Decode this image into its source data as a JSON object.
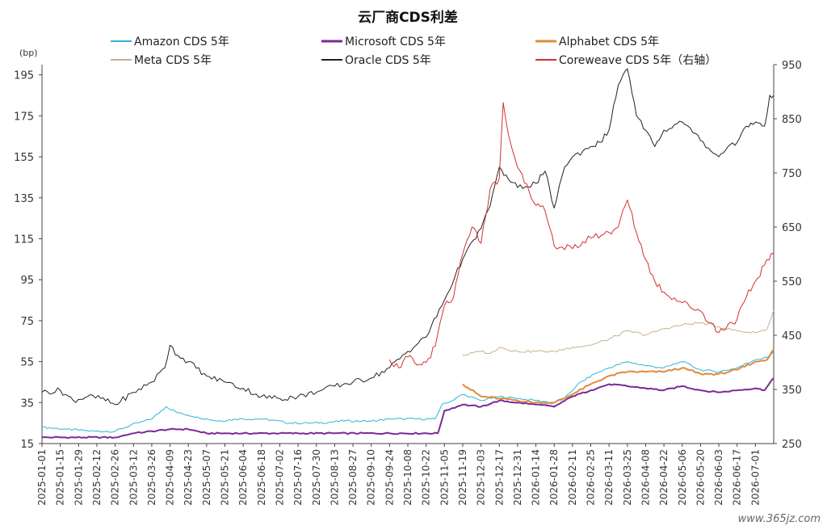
{
  "chart_data": {
    "type": "line",
    "title": "云厂商CDS利差",
    "ylabel_left": "(bp)",
    "ylim_left": [
      15,
      200
    ],
    "yticks_left": [
      15,
      35,
      55,
      75,
      95,
      115,
      135,
      155,
      175,
      195
    ],
    "ylim_right": [
      250,
      950
    ],
    "yticks_right": [
      250,
      350,
      450,
      550,
      650,
      750,
      850,
      950
    ],
    "grid": false,
    "legend_position": "top",
    "x_start": "2025-01-01",
    "x_end": "2026-07-15",
    "x_tick_labels": [
      "2025-01-01",
      "2025-01-15",
      "2025-01-29",
      "2025-02-12",
      "2025-02-26",
      "2025-03-12",
      "2025-03-26",
      "2025-04-09",
      "2025-04-23",
      "2025-05-07",
      "2025-05-21",
      "2025-06-04",
      "2025-06-18",
      "2025-07-02",
      "2025-07-16",
      "2025-07-30",
      "2025-08-13",
      "2025-08-27",
      "2025-09-10",
      "2025-09-24",
      "2025-10-08",
      "2025-10-22",
      "2025-11-05",
      "2025-11-19",
      "2025-12-03",
      "2025-12-17",
      "2025-12-31",
      "2026-01-14",
      "2026-01-28",
      "2026-02-11",
      "2026-02-25",
      "2026-03-11",
      "2026-03-25",
      "2026-04-08",
      "2026-04-22",
      "2026-05-06",
      "2026-05-20",
      "2026-06-03",
      "2026-06-17",
      "2026-07-01"
    ],
    "series": [
      {
        "name": "Amazon CDS 5年",
        "color": "#29b6d6",
        "axis": "left",
        "width": 1,
        "points": [
          [
            "2025-01-01",
            23
          ],
          [
            "2025-01-20",
            22
          ],
          [
            "2025-02-10",
            21
          ],
          [
            "2025-02-26",
            21
          ],
          [
            "2025-03-10",
            24
          ],
          [
            "2025-03-26",
            27
          ],
          [
            "2025-04-06",
            33
          ],
          [
            "2025-04-15",
            30
          ],
          [
            "2025-04-30",
            28
          ],
          [
            "2025-05-15",
            26
          ],
          [
            "2025-06-01",
            27
          ],
          [
            "2025-06-20",
            27
          ],
          [
            "2025-07-10",
            25
          ],
          [
            "2025-08-01",
            25
          ],
          [
            "2025-08-20",
            26
          ],
          [
            "2025-09-10",
            26
          ],
          [
            "2025-09-25",
            27
          ],
          [
            "2025-10-15",
            27
          ],
          [
            "2025-10-29",
            27
          ],
          [
            "2025-11-03",
            34
          ],
          [
            "2025-11-08",
            35
          ],
          [
            "2025-11-19",
            39
          ],
          [
            "2025-12-03",
            36
          ],
          [
            "2025-12-17",
            38
          ],
          [
            "2025-12-31",
            37
          ],
          [
            "2026-01-14",
            36
          ],
          [
            "2026-01-28",
            35
          ],
          [
            "2026-02-05",
            37
          ],
          [
            "2026-02-15",
            44
          ],
          [
            "2026-02-28",
            49
          ],
          [
            "2026-03-11",
            52
          ],
          [
            "2026-03-25",
            55
          ],
          [
            "2026-04-08",
            53
          ],
          [
            "2026-04-22",
            52
          ],
          [
            "2026-05-06",
            55
          ],
          [
            "2026-05-20",
            51
          ],
          [
            "2026-06-03",
            50
          ],
          [
            "2026-06-17",
            52
          ],
          [
            "2026-07-01",
            56
          ],
          [
            "2026-07-10",
            57
          ],
          [
            "2026-07-15",
            60
          ]
        ]
      },
      {
        "name": "Microsoft CDS 5年",
        "color": "#7a2a9a",
        "axis": "left",
        "width": 2,
        "points": [
          [
            "2025-01-01",
            18
          ],
          [
            "2025-02-26",
            18
          ],
          [
            "2025-03-12",
            20
          ],
          [
            "2025-03-26",
            21
          ],
          [
            "2025-04-09",
            22
          ],
          [
            "2025-04-23",
            22
          ],
          [
            "2025-05-07",
            20
          ],
          [
            "2025-06-04",
            20
          ],
          [
            "2025-07-02",
            20
          ],
          [
            "2025-08-13",
            20
          ],
          [
            "2025-09-24",
            20
          ],
          [
            "2025-10-22",
            20
          ],
          [
            "2025-10-31",
            20
          ],
          [
            "2025-11-05",
            31
          ],
          [
            "2025-11-19",
            34
          ],
          [
            "2025-12-03",
            33
          ],
          [
            "2025-12-17",
            36
          ],
          [
            "2025-12-31",
            35
          ],
          [
            "2026-01-14",
            34
          ],
          [
            "2026-01-28",
            33
          ],
          [
            "2026-02-11",
            38
          ],
          [
            "2026-02-25",
            41
          ],
          [
            "2026-03-11",
            44
          ],
          [
            "2026-03-25",
            43
          ],
          [
            "2026-04-08",
            42
          ],
          [
            "2026-04-22",
            41
          ],
          [
            "2026-05-06",
            43
          ],
          [
            "2026-05-20",
            41
          ],
          [
            "2026-06-03",
            40
          ],
          [
            "2026-06-17",
            41
          ],
          [
            "2026-07-01",
            42
          ],
          [
            "2026-07-08",
            41
          ],
          [
            "2026-07-15",
            47
          ]
        ]
      },
      {
        "name": "Alphabet CDS 5年",
        "color": "#e08a3c",
        "axis": "left",
        "width": 2,
        "points": [
          [
            "2025-11-19",
            44
          ],
          [
            "2025-12-03",
            38
          ],
          [
            "2025-12-17",
            37
          ],
          [
            "2025-12-31",
            36
          ],
          [
            "2026-01-14",
            35
          ],
          [
            "2026-01-28",
            35
          ],
          [
            "2026-02-11",
            39
          ],
          [
            "2026-02-25",
            44
          ],
          [
            "2026-03-11",
            48
          ],
          [
            "2026-03-25",
            50
          ],
          [
            "2026-04-08",
            50
          ],
          [
            "2026-04-22",
            50
          ],
          [
            "2026-05-06",
            52
          ],
          [
            "2026-05-20",
            49
          ],
          [
            "2026-06-03",
            49
          ],
          [
            "2026-06-17",
            51
          ],
          [
            "2026-07-01",
            55
          ],
          [
            "2026-07-10",
            56
          ],
          [
            "2026-07-15",
            61
          ]
        ]
      },
      {
        "name": "Meta CDS 5年",
        "color": "#c8b08a",
        "axis": "left",
        "width": 1,
        "points": [
          [
            "2025-11-19",
            58
          ],
          [
            "2025-12-03",
            60
          ],
          [
            "2025-12-10",
            59
          ],
          [
            "2025-12-17",
            62
          ],
          [
            "2025-12-31",
            60
          ],
          [
            "2026-01-14",
            60
          ],
          [
            "2026-01-28",
            60
          ],
          [
            "2026-02-11",
            62
          ],
          [
            "2026-02-25",
            63
          ],
          [
            "2026-03-11",
            66
          ],
          [
            "2026-03-25",
            70
          ],
          [
            "2026-04-08",
            68
          ],
          [
            "2026-04-22",
            71
          ],
          [
            "2026-05-06",
            73
          ],
          [
            "2026-05-20",
            74
          ],
          [
            "2026-06-03",
            72
          ],
          [
            "2026-06-17",
            70
          ],
          [
            "2026-07-01",
            69
          ],
          [
            "2026-07-10",
            71
          ],
          [
            "2026-07-15",
            80
          ]
        ]
      },
      {
        "name": "Oracle CDS 5年",
        "color": "#222222",
        "axis": "left",
        "width": 1,
        "points": [
          [
            "2025-01-01",
            40
          ],
          [
            "2025-01-15",
            41
          ],
          [
            "2025-01-25",
            36
          ],
          [
            "2025-02-05",
            38
          ],
          [
            "2025-02-15",
            37
          ],
          [
            "2025-02-26",
            34
          ],
          [
            "2025-03-12",
            40
          ],
          [
            "2025-03-26",
            45
          ],
          [
            "2025-04-05",
            52
          ],
          [
            "2025-04-09",
            63
          ],
          [
            "2025-04-15",
            58
          ],
          [
            "2025-04-23",
            55
          ],
          [
            "2025-05-07",
            48
          ],
          [
            "2025-05-21",
            45
          ],
          [
            "2025-06-04",
            42
          ],
          [
            "2025-06-18",
            38
          ],
          [
            "2025-07-02",
            37
          ],
          [
            "2025-07-16",
            38
          ],
          [
            "2025-07-30",
            40
          ],
          [
            "2025-08-13",
            43
          ],
          [
            "2025-08-27",
            45
          ],
          [
            "2025-09-10",
            47
          ],
          [
            "2025-09-24",
            52
          ],
          [
            "2025-10-08",
            60
          ],
          [
            "2025-10-22",
            67
          ],
          [
            "2025-11-05",
            85
          ],
          [
            "2025-11-19",
            105
          ],
          [
            "2025-12-03",
            120
          ],
          [
            "2025-12-10",
            131
          ],
          [
            "2025-12-17",
            150
          ],
          [
            "2025-12-24",
            144
          ],
          [
            "2025-12-31",
            140
          ],
          [
            "2026-01-14",
            142
          ],
          [
            "2026-01-21",
            148
          ],
          [
            "2026-01-28",
            130
          ],
          [
            "2026-02-05",
            150
          ],
          [
            "2026-02-11",
            155
          ],
          [
            "2026-02-25",
            160
          ],
          [
            "2026-03-04",
            162
          ],
          [
            "2026-03-11",
            168
          ],
          [
            "2026-03-18",
            190
          ],
          [
            "2026-03-25",
            198
          ],
          [
            "2026-04-01",
            175
          ],
          [
            "2026-04-08",
            168
          ],
          [
            "2026-04-15",
            160
          ],
          [
            "2026-04-22",
            168
          ],
          [
            "2026-05-06",
            172
          ],
          [
            "2026-05-20",
            163
          ],
          [
            "2026-06-03",
            155
          ],
          [
            "2026-06-10",
            160
          ],
          [
            "2026-06-17",
            162
          ],
          [
            "2026-06-24",
            170
          ],
          [
            "2026-07-01",
            172
          ],
          [
            "2026-07-08",
            170
          ],
          [
            "2026-07-12",
            185
          ],
          [
            "2026-07-15",
            185
          ]
        ]
      },
      {
        "name": "Coreweave CDS 5年（右轴）",
        "color": "#d42f2f",
        "axis": "right",
        "width": 1,
        "points": [
          [
            "2025-09-24",
            405
          ],
          [
            "2025-10-01",
            390
          ],
          [
            "2025-10-08",
            410
          ],
          [
            "2025-10-15",
            395
          ],
          [
            "2025-10-22",
            400
          ],
          [
            "2025-10-29",
            430
          ],
          [
            "2025-11-05",
            505
          ],
          [
            "2025-11-12",
            520
          ],
          [
            "2025-11-19",
            600
          ],
          [
            "2025-11-26",
            650
          ],
          [
            "2025-12-03",
            620
          ],
          [
            "2025-12-10",
            720
          ],
          [
            "2025-12-17",
            740
          ],
          [
            "2025-12-20",
            880
          ],
          [
            "2025-12-24",
            820
          ],
          [
            "2025-12-31",
            760
          ],
          [
            "2026-01-07",
            730
          ],
          [
            "2026-01-14",
            690
          ],
          [
            "2026-01-21",
            680
          ],
          [
            "2026-01-28",
            615
          ],
          [
            "2026-02-11",
            610
          ],
          [
            "2026-02-25",
            630
          ],
          [
            "2026-03-11",
            640
          ],
          [
            "2026-03-18",
            650
          ],
          [
            "2026-03-25",
            700
          ],
          [
            "2026-04-01",
            640
          ],
          [
            "2026-04-08",
            590
          ],
          [
            "2026-04-15",
            550
          ],
          [
            "2026-04-22",
            530
          ],
          [
            "2026-05-06",
            510
          ],
          [
            "2026-05-20",
            495
          ],
          [
            "2026-06-03",
            455
          ],
          [
            "2026-06-10",
            470
          ],
          [
            "2026-06-17",
            480
          ],
          [
            "2026-06-24",
            520
          ],
          [
            "2026-07-01",
            550
          ],
          [
            "2026-07-08",
            580
          ],
          [
            "2026-07-15",
            600
          ]
        ]
      }
    ]
  },
  "watermark": "www.365jz.com"
}
